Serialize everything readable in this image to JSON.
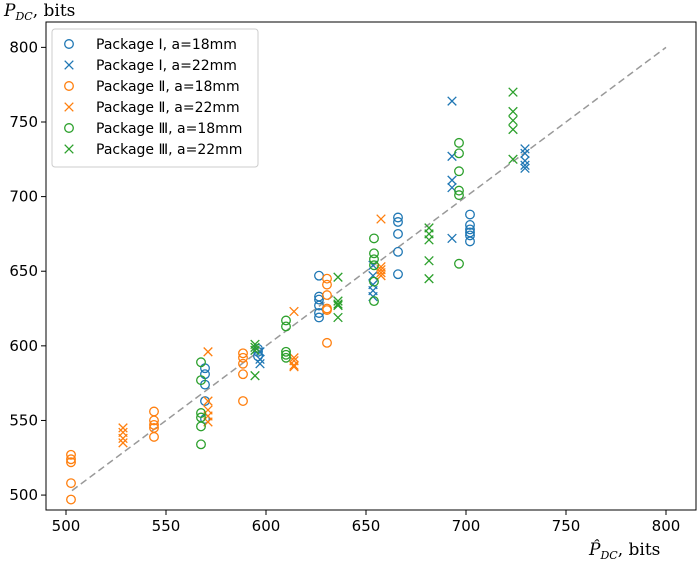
{
  "chart_data": {
    "type": "scatter",
    "title": "",
    "xlabel_main": "P̂",
    "xlabel_sub": "DC",
    "xlabel_suffix": ", bits",
    "ylabel_main": "P",
    "ylabel_sub": "DC",
    "ylabel_suffix": ", bits",
    "xlim": [
      490,
      815
    ],
    "ylim": [
      490,
      817
    ],
    "xticks": [
      500,
      550,
      600,
      650,
      700,
      750,
      800
    ],
    "yticks": [
      500,
      550,
      600,
      650,
      700,
      750,
      800
    ],
    "reference_line": {
      "name": "y = x",
      "from": [
        503,
        503
      ],
      "to": [
        800,
        800
      ],
      "style": "dashed",
      "color": "#999999"
    },
    "legend_position": "top-left",
    "series": [
      {
        "name": "Package Ⅰ, a=18mm",
        "marker": "o",
        "color": "#1f77b4",
        "x": [
          569.5,
          569.5,
          569.5,
          569.5,
          569.5,
          596,
          596,
          596,
          626.5,
          626.5,
          626.5,
          626.5,
          626.5,
          626.5,
          666,
          666,
          666,
          666,
          666,
          702,
          702,
          702,
          702,
          702,
          702
        ],
        "y": [
          585,
          581,
          574,
          563,
          551,
          598,
          596,
          593,
          647,
          633,
          631,
          627,
          622,
          619,
          686,
          683,
          675,
          663,
          648,
          688,
          681,
          678,
          676,
          674,
          670
        ]
      },
      {
        "name": "Package Ⅰ, a=22mm",
        "marker": "x",
        "color": "#1f77b4",
        "x": [
          597,
          597,
          597,
          653.5,
          653.5,
          653.5,
          653.5,
          653.5,
          693,
          693,
          693,
          693,
          693,
          729.5,
          729.5,
          729.5,
          729.5,
          729.5
        ],
        "y": [
          596,
          591,
          588,
          654,
          647,
          641,
          637,
          633,
          764,
          727,
          711,
          706,
          672,
          732,
          729,
          724,
          721,
          719
        ]
      },
      {
        "name": "Package Ⅱ, a=18mm",
        "marker": "o",
        "color": "#ff7f0e",
        "x": [
          502.5,
          502.5,
          502.5,
          502.5,
          502.5,
          544,
          544,
          544,
          544,
          544,
          588.5,
          588.5,
          588.5,
          588.5,
          588.5,
          630.5,
          630.5,
          630.5,
          630.5,
          630.5,
          630.5
        ],
        "y": [
          527,
          524,
          522,
          508,
          497,
          556,
          550,
          547,
          545,
          539,
          595,
          592,
          588,
          581,
          563,
          645,
          641,
          634,
          625,
          624,
          602
        ]
      },
      {
        "name": "Package Ⅱ, a=22mm",
        "marker": "x",
        "color": "#ff7f0e",
        "x": [
          528.5,
          528.5,
          528.5,
          528.5,
          571,
          571,
          571,
          571,
          571,
          614,
          614,
          614,
          614,
          614,
          657.5,
          657.5,
          657.5,
          657.5,
          657.5
        ],
        "y": [
          545,
          542,
          538,
          535,
          596,
          563,
          557,
          553,
          549,
          623,
          592,
          590,
          587,
          586,
          685,
          653,
          651,
          649,
          647
        ]
      },
      {
        "name": "Package Ⅲ, a=18mm",
        "marker": "o",
        "color": "#2ca02c",
        "x": [
          567.5,
          567.5,
          567.5,
          567.5,
          567.5,
          567.5,
          610,
          610,
          610,
          610,
          610,
          654,
          654,
          654,
          654,
          654,
          654,
          696.5,
          696.5,
          696.5,
          696.5,
          696.5,
          696.5
        ],
        "y": [
          589,
          577,
          555,
          552,
          546,
          534,
          617,
          613,
          596,
          594,
          592,
          672,
          662,
          658,
          654,
          643,
          630,
          736,
          729,
          717,
          704,
          701,
          655
        ]
      },
      {
        "name": "Package Ⅲ, a=22mm",
        "marker": "x",
        "color": "#2ca02c",
        "x": [
          594.5,
          594.5,
          594.5,
          594.5,
          636,
          636,
          636,
          636,
          636,
          681.5,
          681.5,
          681.5,
          681.5,
          681.5,
          723.5,
          723.5,
          723.5,
          723.5,
          723.5
        ],
        "y": [
          601,
          599,
          597,
          580,
          646,
          630,
          628,
          627,
          619,
          679,
          675,
          671,
          657,
          645,
          770,
          757,
          751,
          745,
          725
        ]
      }
    ]
  }
}
